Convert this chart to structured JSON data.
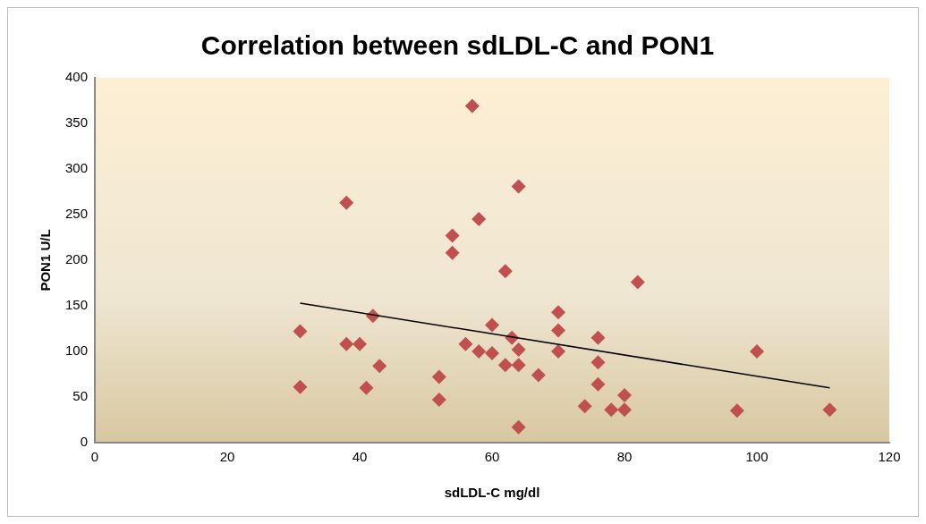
{
  "chart_data": {
    "type": "scatter",
    "title": "Correlation between sdLDL-C and PON1",
    "xlabel": "sdLDL-C mg/dl",
    "ylabel": "PON1 U/L",
    "xlim": [
      0,
      120
    ],
    "xticks": [
      0,
      20,
      40,
      60,
      80,
      100,
      120
    ],
    "ylim": [
      0,
      400
    ],
    "yticks": [
      0,
      50,
      100,
      150,
      200,
      250,
      300,
      350,
      400
    ],
    "grid": false,
    "legend": false,
    "series": [
      {
        "marker": "diamond",
        "color": "#c0504d",
        "x": [
          31,
          31,
          38,
          38,
          40,
          42,
          41,
          43,
          52,
          52,
          54,
          54,
          56,
          57,
          58,
          58,
          60,
          60,
          62,
          62,
          63,
          64,
          64,
          64,
          64,
          67,
          70,
          70,
          70,
          76,
          76,
          76,
          80,
          80,
          78,
          82,
          74,
          97,
          100,
          111
        ],
        "values": [
          61,
          122,
          263,
          108,
          108,
          139,
          60,
          84,
          72,
          47,
          227,
          208,
          108,
          369,
          245,
          100,
          129,
          98,
          188,
          85,
          115,
          102,
          85,
          281,
          17,
          74,
          143,
          123,
          100,
          115,
          88,
          64,
          52,
          36,
          36,
          176,
          40,
          35,
          100,
          36
        ]
      },
      {
        "type": "line",
        "marker": "none",
        "color": "#000000",
        "x": [
          31,
          111
        ],
        "values": [
          153,
          60
        ]
      }
    ]
  }
}
